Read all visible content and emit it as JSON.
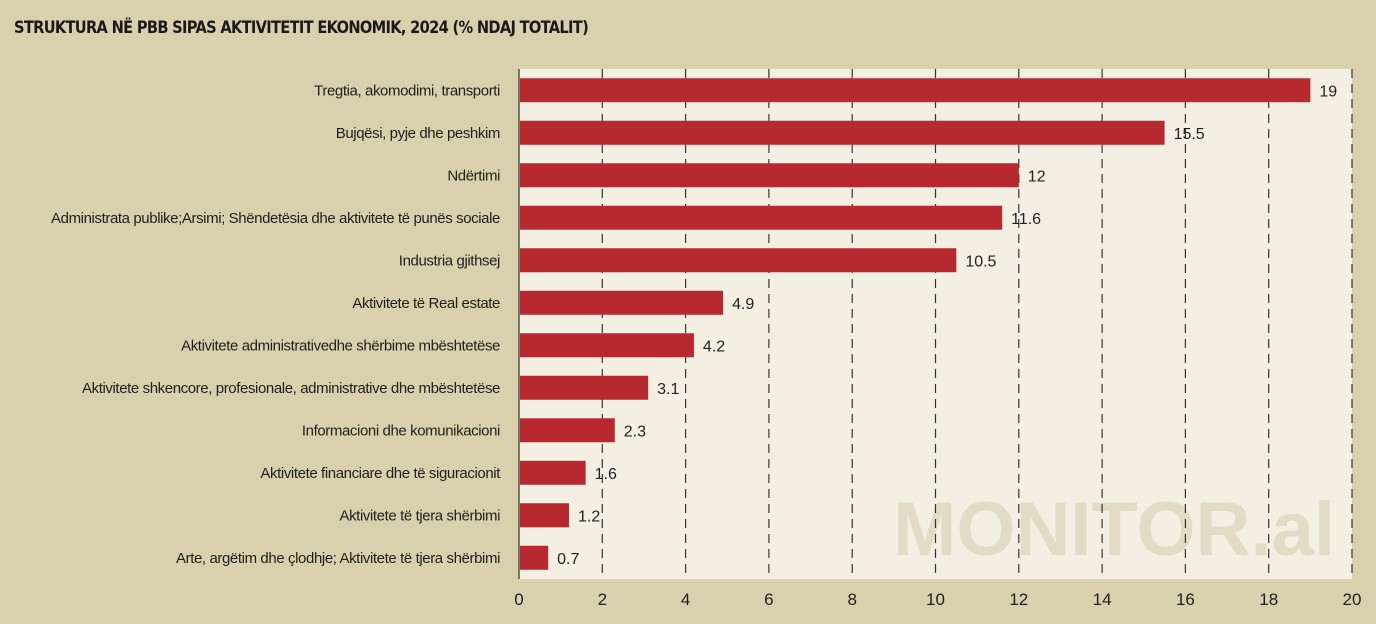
{
  "chart_data": {
    "type": "bar",
    "orientation": "horizontal",
    "title": "STRUKTURA NË PBB SIPAS AKTIVITETIT EKONOMIK, 2024 (% NDAJ TOTALIT)",
    "categories": [
      "Tregtia, akomodimi, transporti",
      "Bujqësi, pyje dhe peshkim",
      "Ndërtimi",
      "Administrata publike;Arsimi; Shëndetësia dhe aktivitete të punës sociale",
      "Industria gjithsej",
      "Aktivitete të Real estate",
      "Aktivitete administrativedhe shërbime mbështetëse",
      "Aktivitete shkencore, profesionale, administrative dhe mbështetëse",
      "Informacioni dhe komunikacioni",
      "Aktivitete financiare dhe të siguracionit",
      "Aktivitete të tjera shërbimi",
      "Arte, argëtim dhe çlodhje; Aktivitete të tjera shërbimi"
    ],
    "values": [
      19,
      15.5,
      12,
      11.6,
      10.5,
      4.9,
      4.2,
      3.1,
      2.3,
      1.6,
      1.2,
      0.7
    ],
    "value_labels": [
      "19",
      "15.5",
      "12",
      "11.6",
      "10.5",
      "4.9",
      "4.2",
      "3.1",
      "2.3",
      "1.6",
      "1.2",
      "0.7"
    ],
    "xlim": [
      0,
      20
    ],
    "xticks": [
      "0",
      "2",
      "4",
      "6",
      "8",
      "10",
      "12",
      "14",
      "16",
      "18",
      "20"
    ],
    "xlabel": "",
    "ylabel": "",
    "grid": "vertical dashed",
    "watermark": "MONITOR.al",
    "colors": {
      "bar": "#b8292f",
      "background": "#d9d1ad",
      "plot_background": "#f3f0e3"
    }
  }
}
